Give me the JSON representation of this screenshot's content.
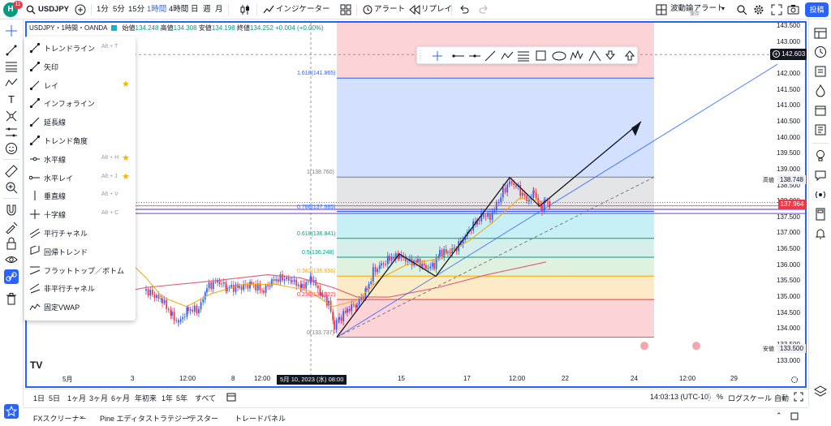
{
  "topbar": {
    "notif_count": "11",
    "symbol": "USDJPY",
    "intervals": [
      "1分",
      "5分",
      "15分",
      "1時間",
      "4時間",
      "日",
      "週",
      "月"
    ],
    "active_interval": "1時間",
    "indicators": "インジケーター",
    "alert": "アラート",
    "replay": "リプレイ",
    "layout_name": "波動論アラート",
    "layout_sub": "保存",
    "publish": "投稿"
  },
  "legend": {
    "title": "USDJPY・1時間・OANDA",
    "open_label": "始値",
    "open": "134.248",
    "high_label": "高値",
    "high": "134.308",
    "low_label": "安値",
    "low": "134.198",
    "close_label": "終値",
    "close": "134.252",
    "change": "+0.004 (+0.00%)"
  },
  "menu": {
    "items": [
      {
        "label": "トレンドライン",
        "shortcut": "Alt + T",
        "star": ""
      },
      {
        "label": "矢印",
        "shortcut": "",
        "star": ""
      },
      {
        "label": "レイ",
        "shortcut": "",
        "star": "★"
      },
      {
        "label": "インフォライン",
        "shortcut": "",
        "star": ""
      },
      {
        "label": "延長線",
        "shortcut": "",
        "star": ""
      },
      {
        "label": "トレンド角度",
        "shortcut": "",
        "star": ""
      },
      {
        "label": "水平線",
        "shortcut": "Alt + H",
        "star": "★"
      },
      {
        "label": "水平レイ",
        "shortcut": "Alt + J",
        "star": "★"
      },
      {
        "label": "垂直線",
        "shortcut": "Alt + V",
        "star": ""
      },
      {
        "label": "十字線",
        "shortcut": "Alt + C",
        "star": ""
      },
      {
        "label": "平行チャネル",
        "shortcut": "",
        "star": ""
      },
      {
        "label": "回帰トレンド",
        "shortcut": "",
        "star": ""
      },
      {
        "label": "フラットトップ／ボトム",
        "shortcut": "",
        "star": ""
      },
      {
        "label": "非平行チャネル",
        "shortcut": "",
        "star": ""
      },
      {
        "label": "固定VWAP",
        "shortcut": "",
        "star": ""
      }
    ]
  },
  "price_axis": {
    "ticks": [
      "143.500",
      "143.000",
      "142.500",
      "142.000",
      "141.500",
      "141.000",
      "140.500",
      "140.000",
      "139.500",
      "139.000",
      "138.500",
      "138.000",
      "137.500",
      "137.000",
      "136.500",
      "136.000",
      "135.500",
      "135.000",
      "134.500",
      "134.000",
      "133.500",
      "133.000"
    ],
    "crosshair_price": "142.603",
    "current_price": "137.964",
    "high_label": "高値",
    "high_value": "138.748",
    "low_label": "安値",
    "low_value": "133.500"
  },
  "fib": {
    "levels": [
      "1.618(141.865)",
      "1(138.760)",
      "0.786(137.685)",
      "0.618(136.841)",
      "0.5(136.248)",
      "0.382(135.656)",
      "0.236(134.922)",
      "0(133.737)"
    ],
    "colors": [
      "#2962ff",
      "#787b86",
      "#2962ff",
      "#089981",
      "#089981",
      "#f7a600",
      "#f23645",
      "#787b86"
    ]
  },
  "time_axis": {
    "ticks": [
      "5月",
      "3",
      "12:00",
      "8",
      "12:00",
      "15",
      "17",
      "12:00",
      "22",
      "24",
      "12:00",
      "29"
    ],
    "crosshair_time": "5月 10, 2023 (水)  08:00"
  },
  "bottom": {
    "ranges": [
      "1日",
      "5日",
      "1ヶ月",
      "3ヶ月",
      "6ヶ月",
      "年初来",
      "1年",
      "5年",
      "すべて"
    ],
    "clock": "14:03:13 (UTC-10)",
    "percent": "%",
    "log": "ログスケール",
    "auto": "自動"
  },
  "panels": {
    "tabs": [
      "FXスクリーナー",
      "Pine エディタ",
      "ストラテジーテスター",
      "トレードパネル"
    ]
  },
  "colors": {
    "accent": "#2962ff",
    "up": "#2962ff",
    "down": "#f23645",
    "ema_short": "#f7a600",
    "ema_long": "#e05a7a"
  }
}
